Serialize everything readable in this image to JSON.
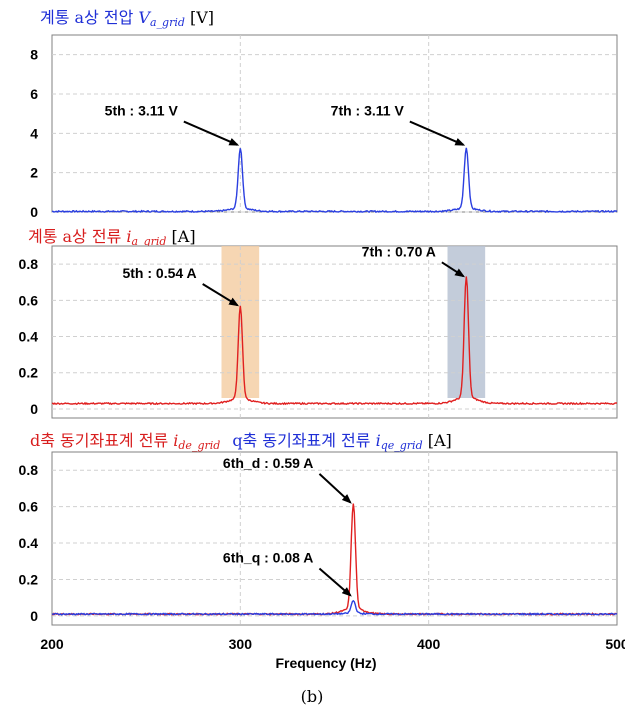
{
  "chart_data": [
    {
      "type": "line",
      "title_parts": {
        "main": "계통 a상 전압 ",
        "var": "V",
        "sub": "a_grid",
        "unit": " [V]"
      },
      "title_color": "#1f2fd6",
      "xlim": [
        200,
        500
      ],
      "ylim": [
        0,
        9
      ],
      "yticks": [
        "0",
        "2",
        "4",
        "6",
        "8"
      ],
      "highlights": [],
      "series": [
        {
          "color": "#2b3fe0",
          "peaks": [
            {
              "x": 300,
              "y": 3.11
            },
            {
              "x": 420,
              "y": 3.11
            }
          ],
          "baseline": 0.03
        }
      ],
      "annotations": [
        {
          "text": "5th : 3.11 V",
          "x": 300,
          "y": 3.11,
          "tx": 270,
          "ty": 4.6
        },
        {
          "text": "7th : 3.11 V",
          "x": 420,
          "y": 3.11,
          "tx": 390,
          "ty": 4.6
        }
      ]
    },
    {
      "type": "line",
      "title_parts": {
        "main": "계통 a상 전류 ",
        "var": "i",
        "sub": "a_grid",
        "unit": " [A]"
      },
      "title_color": "#d81e1e",
      "xlim": [
        200,
        500
      ],
      "ylim": [
        -0.05,
        0.9
      ],
      "yticks": [
        "0",
        "0.2",
        "0.4",
        "0.6",
        "0.8"
      ],
      "highlights": [
        {
          "x0": 290,
          "x1": 310,
          "color": "#f5cfa6"
        },
        {
          "x0": 410,
          "x1": 430,
          "color": "#b9c3d4"
        }
      ],
      "series": [
        {
          "color": "#e02020",
          "peaks": [
            {
              "x": 300,
              "y": 0.54
            },
            {
              "x": 420,
              "y": 0.7
            }
          ],
          "baseline": 0.03
        }
      ],
      "annotations": [
        {
          "text": "5th : 0.54 A",
          "x": 300,
          "y": 0.54,
          "tx": 280,
          "ty": 0.69
        },
        {
          "text": "7th : 0.70 A",
          "x": 420,
          "y": 0.7,
          "tx": 407,
          "ty": 0.81
        }
      ]
    },
    {
      "type": "line",
      "title_parts": {
        "d_main": "d축 동기좌표계 전류 ",
        "d_var": "i",
        "d_sub": "de_grid",
        "q_main": "q축 동기좌표계 전류 ",
        "q_var": "i",
        "q_sub": "qe_grid",
        "unit": " [A]"
      },
      "title_color": "#d81e1e",
      "title_color_q": "#1f2fd6",
      "xlim": [
        200,
        500
      ],
      "ylim": [
        -0.05,
        0.9
      ],
      "yticks": [
        "0",
        "0.2",
        "0.4",
        "0.6",
        "0.8"
      ],
      "xticks": [
        "200",
        "300",
        "400",
        "500"
      ],
      "xlabel": "Frequency (Hz)",
      "highlights": [],
      "series": [
        {
          "color": "#e02020",
          "peaks": [
            {
              "x": 360,
              "y": 0.59
            }
          ],
          "baseline": 0.01
        },
        {
          "color": "#2b3fe0",
          "peaks": [
            {
              "x": 360,
              "y": 0.08
            }
          ],
          "baseline": 0.01
        }
      ],
      "annotations": [
        {
          "text": "6th_d : 0.59 A",
          "x": 360,
          "y": 0.59,
          "tx": 342,
          "ty": 0.78
        },
        {
          "text": "6th_q : 0.08 A",
          "x": 360,
          "y": 0.08,
          "tx": 342,
          "ty": 0.26
        }
      ]
    }
  ],
  "caption": "(b)"
}
